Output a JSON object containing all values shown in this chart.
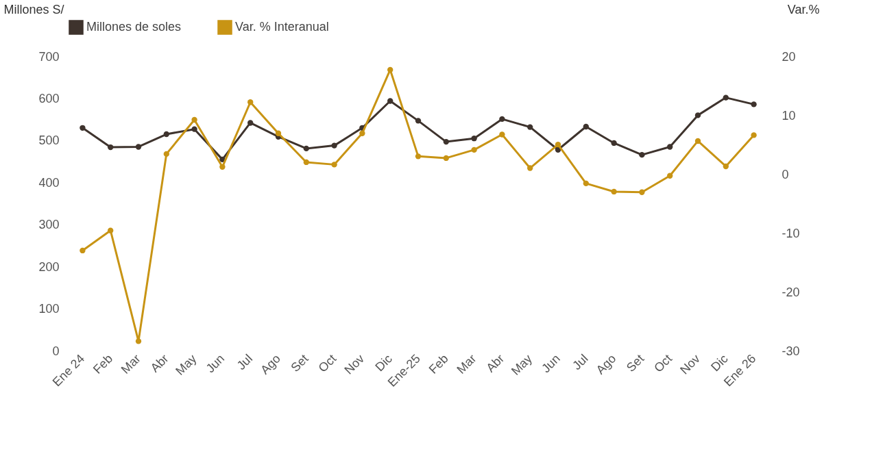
{
  "chart_data": {
    "type": "line",
    "categories": [
      "Ene 24",
      "Feb",
      "Mar",
      "Abr",
      "May",
      "Jun",
      "Jul",
      "Ago",
      "Set",
      "Oct",
      "Nov",
      "Dic",
      "Ene-25",
      "Feb",
      "Mar",
      "Abr",
      "May",
      "Jun",
      "Jul",
      "Ago",
      "Set",
      "Oct",
      "Nov",
      "Dic",
      "Ene 26"
    ],
    "ylabel": "Millones S/",
    "y2label": "Var.%",
    "ylim": [
      0,
      700
    ],
    "yticks": [
      0,
      100,
      200,
      300,
      400,
      500,
      600,
      700
    ],
    "y2lim": [
      -30,
      20
    ],
    "y2ticks": [
      -30,
      -20,
      -10,
      0,
      10,
      20
    ],
    "series": [
      {
        "name": "Millones de soles",
        "color": "#3e332d",
        "values": [
          531,
          485,
          486,
          516,
          528,
          456,
          543,
          510,
          482,
          489,
          531,
          595,
          548,
          498,
          506,
          552,
          533,
          479,
          534,
          495,
          467,
          486,
          561,
          603,
          587
        ]
      },
      {
        "name": "Var. % Interanual",
        "color": "#c89414",
        "axis": "y2",
        "values": [
          -12.9,
          -9.5,
          -28.3,
          3.5,
          9.3,
          1.3,
          12.3,
          7.0,
          2.1,
          1.7,
          7.0,
          17.8,
          3.1,
          2.8,
          4.2,
          6.8,
          1.1,
          5.1,
          -1.5,
          -2.9,
          -3.0,
          -0.2,
          5.7,
          1.4,
          6.7
        ]
      }
    ],
    "marker": "circle",
    "line_style": "solid",
    "grid": false,
    "legend": "top"
  }
}
